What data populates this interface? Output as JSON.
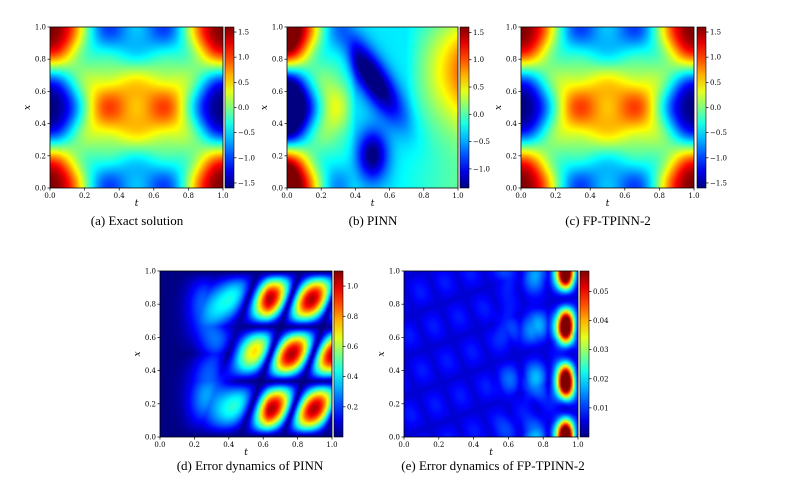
{
  "chart_data": [
    {
      "type": "heatmap",
      "kind": "exact",
      "caption": "(a) Exact solution",
      "xlabel": "t",
      "ylabel": "x",
      "xlim": [
        0,
        1
      ],
      "ylim": [
        0,
        1
      ],
      "xticks": [
        "0.0",
        "0.2",
        "0.4",
        "0.6",
        "0.8",
        "1.0"
      ],
      "yticks": [
        "0.0",
        "0.2",
        "0.4",
        "0.6",
        "0.8",
        "1.0"
      ],
      "colorbar": {
        "min": -1.6,
        "max": 1.6,
        "ticks": [
          1.5,
          1.0,
          0.5,
          0.0,
          -0.5,
          -1.0,
          -1.5
        ],
        "labels": [
          "1.5",
          "1.0",
          "0.5",
          "0.0",
          "−0.5",
          "−1.0",
          "−1.5"
        ]
      }
    },
    {
      "type": "heatmap",
      "kind": "pinn",
      "caption": "(b) PINN",
      "xlabel": "t",
      "ylabel": "x",
      "xlim": [
        0,
        1
      ],
      "ylim": [
        0,
        1
      ],
      "xticks": [
        "0.0",
        "0.2",
        "0.4",
        "0.6",
        "0.8",
        "1.0"
      ],
      "yticks": [
        "0.0",
        "0.2",
        "0.4",
        "0.6",
        "0.8",
        "1.0"
      ],
      "colorbar": {
        "min": -1.35,
        "max": 1.6,
        "ticks": [
          1.5,
          1.0,
          0.5,
          0.0,
          -0.5,
          -1.0
        ],
        "labels": [
          "1.5",
          "1.0",
          "0.5",
          "0.0",
          "−0.5",
          "−1.0"
        ]
      }
    },
    {
      "type": "heatmap",
      "kind": "exact",
      "caption": "(c) FP-TPINN-2",
      "xlabel": "t",
      "ylabel": "x",
      "xlim": [
        0,
        1
      ],
      "ylim": [
        0,
        1
      ],
      "xticks": [
        "0.0",
        "0.2",
        "0.4",
        "0.6",
        "0.8",
        "1.0"
      ],
      "yticks": [
        "0.0",
        "0.2",
        "0.4",
        "0.6",
        "0.8",
        "1.0"
      ],
      "colorbar": {
        "min": -1.6,
        "max": 1.6,
        "ticks": [
          1.5,
          1.0,
          0.5,
          0.0,
          -0.5,
          -1.0,
          -1.5
        ],
        "labels": [
          "1.5",
          "1.0",
          "0.5",
          "0.0",
          "−0.5",
          "−1.0",
          "−1.5"
        ]
      }
    },
    {
      "type": "heatmap",
      "kind": "errpinn",
      "caption": "(d) Error dynamics of PINN",
      "xlabel": "t",
      "ylabel": "x",
      "xlim": [
        0,
        1
      ],
      "ylim": [
        0,
        1
      ],
      "xticks": [
        "0.0",
        "0.2",
        "0.4",
        "0.6",
        "0.8",
        "1.0"
      ],
      "yticks": [
        "0.0",
        "0.2",
        "0.4",
        "0.6",
        "0.8",
        "1.0"
      ],
      "colorbar": {
        "min": 0,
        "max": 1.1,
        "ticks": [
          1.0,
          0.8,
          0.6,
          0.4,
          0.2
        ],
        "labels": [
          "1.0",
          "0.8",
          "0.6",
          "0.4",
          "0.2"
        ]
      }
    },
    {
      "type": "heatmap",
      "kind": "errfp",
      "caption": "(e) Error dynamics of FP-TPINN-2",
      "xlabel": "t",
      "ylabel": "x",
      "xlim": [
        0,
        1
      ],
      "ylim": [
        0,
        1
      ],
      "xticks": [
        "0.0",
        "0.2",
        "0.4",
        "0.6",
        "0.8",
        "1.0"
      ],
      "yticks": [
        "0.0",
        "0.2",
        "0.4",
        "0.6",
        "0.8",
        "1.0"
      ],
      "colorbar": {
        "min": 0,
        "max": 0.057,
        "ticks": [
          0.05,
          0.04,
          0.03,
          0.02,
          0.01
        ],
        "labels": [
          "0.05",
          "0.04",
          "0.03",
          "0.02",
          "0.01"
        ]
      }
    }
  ]
}
